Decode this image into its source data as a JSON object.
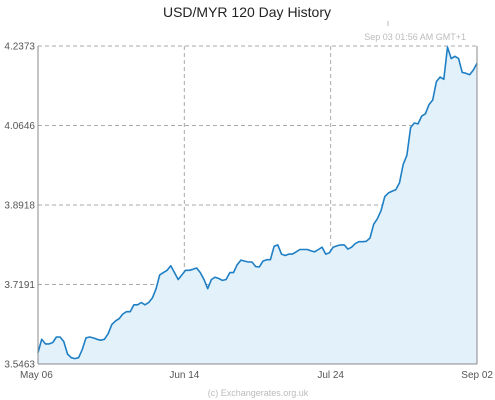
{
  "chart_data": {
    "type": "area",
    "title": "USD/MYR  120 Day History",
    "timestamp": "Sep 03  01:56 AM GMT+1",
    "credit": "(c) Exchangerates.org.uk",
    "x_tick_labels": [
      "May 06",
      "Jun 14",
      "Jul 24",
      "Sep 02"
    ],
    "y_tick_labels": [
      "4.2373",
      "4.0646",
      "3.8918",
      "3.7191",
      "3.5463"
    ],
    "ylim": [
      3.5463,
      4.2373
    ],
    "grid": true,
    "colors": {
      "line": "#1f7fc4",
      "fill": "#e3f1fa",
      "grid": "#aaaaaa"
    },
    "series": [
      {
        "values": [
          3.571,
          3.6,
          3.59,
          3.59,
          3.593,
          3.605,
          3.605,
          3.595,
          3.568,
          3.56,
          3.558,
          3.56,
          3.578,
          3.603,
          3.605,
          3.603,
          3.6,
          3.598,
          3.6,
          3.612,
          3.632,
          3.64,
          3.645,
          3.655,
          3.66,
          3.66,
          3.675,
          3.675,
          3.68,
          3.675,
          3.68,
          3.69,
          3.71,
          3.74,
          3.745,
          3.75,
          3.76,
          3.745,
          3.73,
          3.74,
          3.75,
          3.75,
          3.752,
          3.755,
          3.745,
          3.73,
          3.71,
          3.73,
          3.735,
          3.732,
          3.728,
          3.73,
          3.745,
          3.745,
          3.762,
          3.772,
          3.77,
          3.768,
          3.768,
          3.758,
          3.757,
          3.77,
          3.773,
          3.773,
          3.802,
          3.805,
          3.785,
          3.782,
          3.785,
          3.785,
          3.79,
          3.795,
          3.795,
          3.795,
          3.792,
          3.79,
          3.795,
          3.8,
          3.785,
          3.788,
          3.8,
          3.803,
          3.805,
          3.805,
          3.796,
          3.8,
          3.808,
          3.812,
          3.812,
          3.813,
          3.82,
          3.85,
          3.862,
          3.88,
          3.91,
          3.918,
          3.922,
          3.925,
          3.94,
          3.98,
          4.0,
          4.06,
          4.07,
          4.068,
          4.085,
          4.09,
          4.11,
          4.12,
          4.16,
          4.17,
          4.165,
          4.235,
          4.21,
          4.215,
          4.21,
          4.18,
          4.178,
          4.175,
          4.185,
          4.2
        ]
      }
    ]
  }
}
